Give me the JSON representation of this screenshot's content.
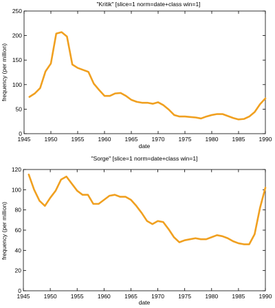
{
  "chart_data": [
    {
      "type": "line",
      "title": "\"Kritik\" [slice=1 norm=date+class win=1]",
      "xlabel": "date",
      "ylabel": "frequency (per million)",
      "xlim": [
        1945,
        1990
      ],
      "ylim": [
        0,
        250
      ],
      "xticks": [
        1945,
        1950,
        1955,
        1960,
        1965,
        1970,
        1975,
        1980,
        1985,
        1990
      ],
      "yticks": [
        0,
        50,
        100,
        150,
        200,
        250
      ],
      "grid": false,
      "legend": "none",
      "color": "#f0a020",
      "series": [
        {
          "x": [
            1946,
            1947,
            1948,
            1949,
            1950,
            1951,
            1952,
            1953,
            1954,
            1955,
            1956,
            1957,
            1958,
            1959,
            1960,
            1961,
            1962,
            1963,
            1964,
            1965,
            1966,
            1967,
            1968,
            1969,
            1970,
            1971,
            1972,
            1973,
            1974,
            1975,
            1976,
            1977,
            1978,
            1979,
            1980,
            1981,
            1982,
            1983,
            1984,
            1985,
            1986,
            1987,
            1988,
            1989,
            1990
          ],
          "values": [
            75,
            82,
            93,
            127,
            143,
            204,
            207,
            198,
            141,
            134,
            130,
            126,
            102,
            89,
            77,
            77,
            82,
            83,
            77,
            69,
            65,
            63,
            63,
            61,
            64,
            58,
            49,
            38,
            35,
            35,
            34,
            33,
            31,
            35,
            38,
            40,
            40,
            36,
            32,
            29,
            30,
            35,
            44,
            60,
            72
          ]
        }
      ]
    },
    {
      "type": "line",
      "title": "\"Sorge\" [slice=1 norm=date+class win=1]",
      "xlabel": "date",
      "ylabel": "frequency (per million)",
      "xlim": [
        1945,
        1990
      ],
      "ylim": [
        0,
        120
      ],
      "xticks": [
        1945,
        1950,
        1955,
        1960,
        1965,
        1970,
        1975,
        1980,
        1985,
        1990
      ],
      "yticks": [
        0,
        20,
        40,
        60,
        80,
        100,
        120
      ],
      "grid": false,
      "legend": "none",
      "color": "#f0a020",
      "series": [
        {
          "x": [
            1946,
            1947,
            1948,
            1949,
            1950,
            1951,
            1952,
            1953,
            1954,
            1955,
            1956,
            1957,
            1958,
            1959,
            1960,
            1961,
            1962,
            1963,
            1964,
            1965,
            1966,
            1967,
            1968,
            1969,
            1970,
            1971,
            1972,
            1973,
            1974,
            1975,
            1976,
            1977,
            1978,
            1979,
            1980,
            1981,
            1982,
            1983,
            1984,
            1985,
            1986,
            1987,
            1988,
            1989,
            1990
          ],
          "values": [
            115,
            100,
            89,
            84,
            92,
            99,
            110,
            113,
            106,
            99,
            95,
            95,
            86,
            86,
            90,
            94,
            95,
            93,
            93,
            90,
            84,
            77,
            69,
            66,
            69,
            68,
            61,
            53,
            48,
            50,
            51,
            52,
            51,
            51,
            53,
            55,
            54,
            52,
            49,
            47,
            46,
            46,
            56,
            82,
            102
          ]
        }
      ]
    }
  ]
}
